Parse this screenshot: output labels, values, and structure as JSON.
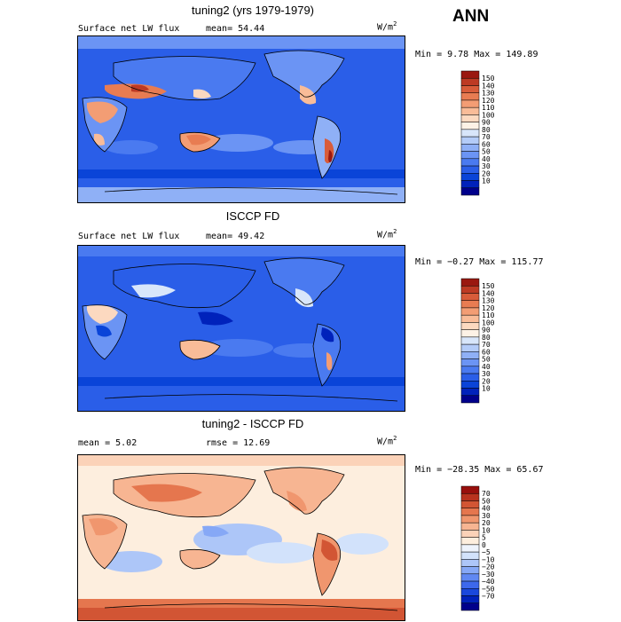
{
  "season": "ANN",
  "panels": [
    {
      "title": "tuning2 (yrs 1979-1979)",
      "left_label": "Surface net LW flux",
      "mean_label": "mean=  54.44",
      "units": "W/m",
      "units_exp": "2",
      "minmax": "Min =    9.78 Max = 149.89",
      "colorbar": {
        "colors": [
          "#00008b",
          "#0022bb",
          "#0a44d8",
          "#2a5ee8",
          "#4a7af0",
          "#6b94f4",
          "#8fb0f6",
          "#b4ccf8",
          "#d8e6fa",
          "#fdf2e6",
          "#fcd9c0",
          "#f9bc98",
          "#f39d74",
          "#e87c52",
          "#d85c3a",
          "#bd3a24",
          "#9a1810"
        ],
        "labels": [
          "150",
          "140",
          "130",
          "120",
          "110",
          "100",
          "90",
          "80",
          "70",
          "60",
          "50",
          "40",
          "30",
          "20",
          "10"
        ]
      }
    },
    {
      "title": "ISCCP FD",
      "left_label": "Surface net LW flux",
      "mean_label": "mean=  49.42",
      "units": "W/m",
      "units_exp": "2",
      "minmax": "Min =  −0.27 Max = 115.77",
      "colorbar": {
        "colors": [
          "#00008b",
          "#0022bb",
          "#0a44d8",
          "#2a5ee8",
          "#4a7af0",
          "#6b94f4",
          "#8fb0f6",
          "#b4ccf8",
          "#d8e6fa",
          "#fdf2e6",
          "#fcd9c0",
          "#f9bc98",
          "#f39d74",
          "#e87c52",
          "#d85c3a",
          "#bd3a24",
          "#9a1810"
        ],
        "labels": [
          "150",
          "140",
          "130",
          "120",
          "110",
          "100",
          "90",
          "80",
          "70",
          "60",
          "50",
          "40",
          "30",
          "20",
          "10"
        ]
      }
    },
    {
      "title": "tuning2 - ISCCP FD",
      "left_label": "mean =   5.02",
      "mean_label": "rmse =  12.69",
      "units": "W/m",
      "units_exp": "2",
      "minmax": "Min = −28.35 Max =  65.67",
      "colorbar": {
        "colors": [
          "#00008b",
          "#0022bb",
          "#1a48dc",
          "#3d68ec",
          "#6088f2",
          "#86a8f6",
          "#adc6f8",
          "#d2e2fb",
          "#eef3fc",
          "#fdeede",
          "#fbd2b8",
          "#f7b592",
          "#f0966e",
          "#e5764e",
          "#d25534",
          "#b8321e",
          "#980f0c"
        ],
        "labels": [
          "70",
          "50",
          "40",
          "30",
          "20",
          "10",
          "5",
          "0",
          "−5",
          "−10",
          "−20",
          "−30",
          "−40",
          "−50",
          "−70"
        ]
      }
    }
  ]
}
